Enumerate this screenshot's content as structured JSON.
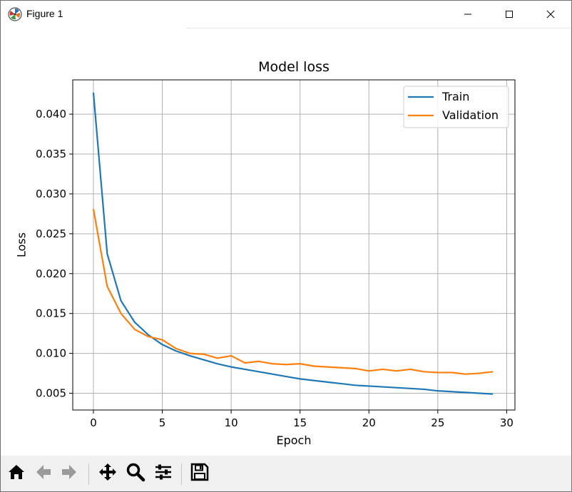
{
  "window": {
    "title": "Figure 1",
    "icons": {
      "app": "matplotlib-logo-icon",
      "minimize": "minimize-icon",
      "maximize": "maximize-icon",
      "close": "close-icon"
    }
  },
  "toolbar": {
    "buttons": [
      {
        "name": "home",
        "icon": "home-icon"
      },
      {
        "name": "back",
        "icon": "arrow-left-icon"
      },
      {
        "name": "forward",
        "icon": "arrow-right-icon"
      },
      {
        "name": "pan",
        "icon": "move-icon"
      },
      {
        "name": "zoom",
        "icon": "magnifier-icon"
      },
      {
        "name": "configure-subplots",
        "icon": "sliders-icon"
      },
      {
        "name": "save",
        "icon": "floppy-disk-icon"
      }
    ]
  },
  "chart_data": {
    "type": "line",
    "title": "Model loss",
    "xlabel": "Epoch",
    "ylabel": "Loss",
    "xlim": [
      -1.5,
      30.6
    ],
    "ylim": [
      0.0029,
      0.0443
    ],
    "xticks": [
      0,
      5,
      10,
      15,
      20,
      25,
      30
    ],
    "yticks": [
      0.005,
      0.01,
      0.015,
      0.02,
      0.025,
      0.03,
      0.035,
      0.04
    ],
    "ytick_labels": [
      "0.005",
      "0.010",
      "0.015",
      "0.020",
      "0.025",
      "0.030",
      "0.035",
      "0.040"
    ],
    "grid": true,
    "legend_position": "upper right",
    "x": [
      0,
      1,
      2,
      3,
      4,
      5,
      6,
      7,
      8,
      9,
      10,
      11,
      12,
      13,
      14,
      15,
      16,
      17,
      18,
      19,
      20,
      21,
      22,
      23,
      24,
      25,
      26,
      27,
      28,
      29
    ],
    "series": [
      {
        "name": "Train",
        "color": "#1f77b4",
        "values": [
          0.0427,
          0.0225,
          0.0166,
          0.0139,
          0.0123,
          0.0111,
          0.0103,
          0.0097,
          0.0092,
          0.0087,
          0.0083,
          0.008,
          0.0077,
          0.0074,
          0.0071,
          0.0068,
          0.0066,
          0.0064,
          0.0062,
          0.006,
          0.0059,
          0.0058,
          0.0057,
          0.0056,
          0.0055,
          0.0053,
          0.0052,
          0.0051,
          0.005,
          0.0049
        ]
      },
      {
        "name": "Validation",
        "color": "#ff7f0e",
        "values": [
          0.0281,
          0.0184,
          0.015,
          0.013,
          0.0121,
          0.0117,
          0.0106,
          0.01,
          0.0099,
          0.0094,
          0.0097,
          0.0088,
          0.009,
          0.0087,
          0.0086,
          0.0087,
          0.0084,
          0.0083,
          0.0082,
          0.0081,
          0.0078,
          0.008,
          0.0078,
          0.008,
          0.0077,
          0.0076,
          0.0076,
          0.0074,
          0.0075,
          0.0077
        ]
      }
    ]
  }
}
